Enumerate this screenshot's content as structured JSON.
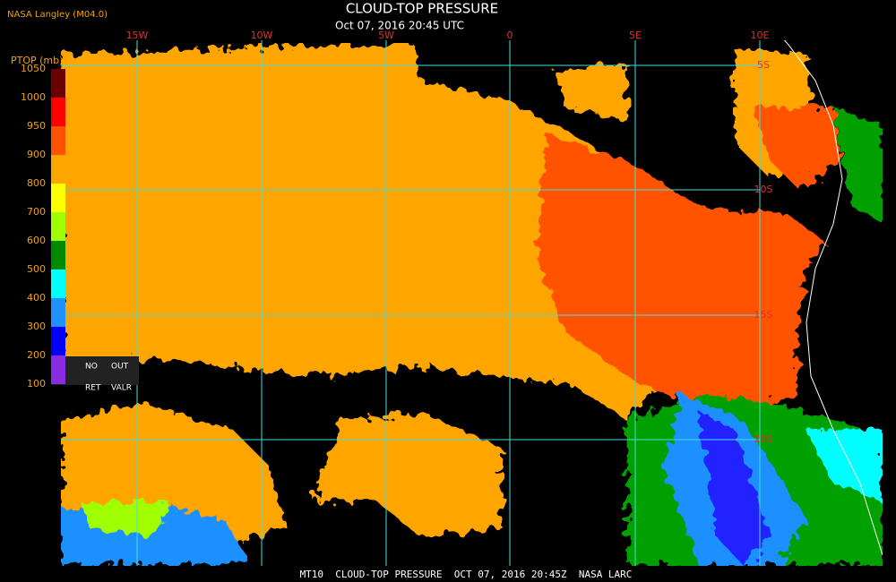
{
  "header": {
    "source": "NASA Langley (M04.0)",
    "title": "CLOUD-TOP PRESSURE",
    "timestamp": "Oct 07, 2016 20:45 UTC"
  },
  "longitudes": [
    "15W",
    "10W",
    "5W",
    "0",
    "5E",
    "10E"
  ],
  "latitudes": [
    "5S",
    "10S",
    "15S",
    "20S"
  ],
  "colorbar": {
    "title": "PTOP (mb)",
    "ticks": [
      "1050",
      "1000",
      "950",
      "900",
      "800",
      "700",
      "600",
      "500",
      "400",
      "300",
      "200",
      "100"
    ],
    "colors": [
      "#6b0000",
      "#ff0000",
      "#ff5200",
      "#ffa500",
      "#ffff00",
      "#a0ff00",
      "#008a00",
      "#00ffff",
      "#1e90ff",
      "#0000ff",
      "#8a2be2"
    ],
    "flags": [
      "NO",
      "OUT",
      "RET",
      "VALR"
    ]
  },
  "footer": "MT10  CLOUD-TOP PRESSURE  OCT 07, 2016 20:45Z  NASA LARC"
}
